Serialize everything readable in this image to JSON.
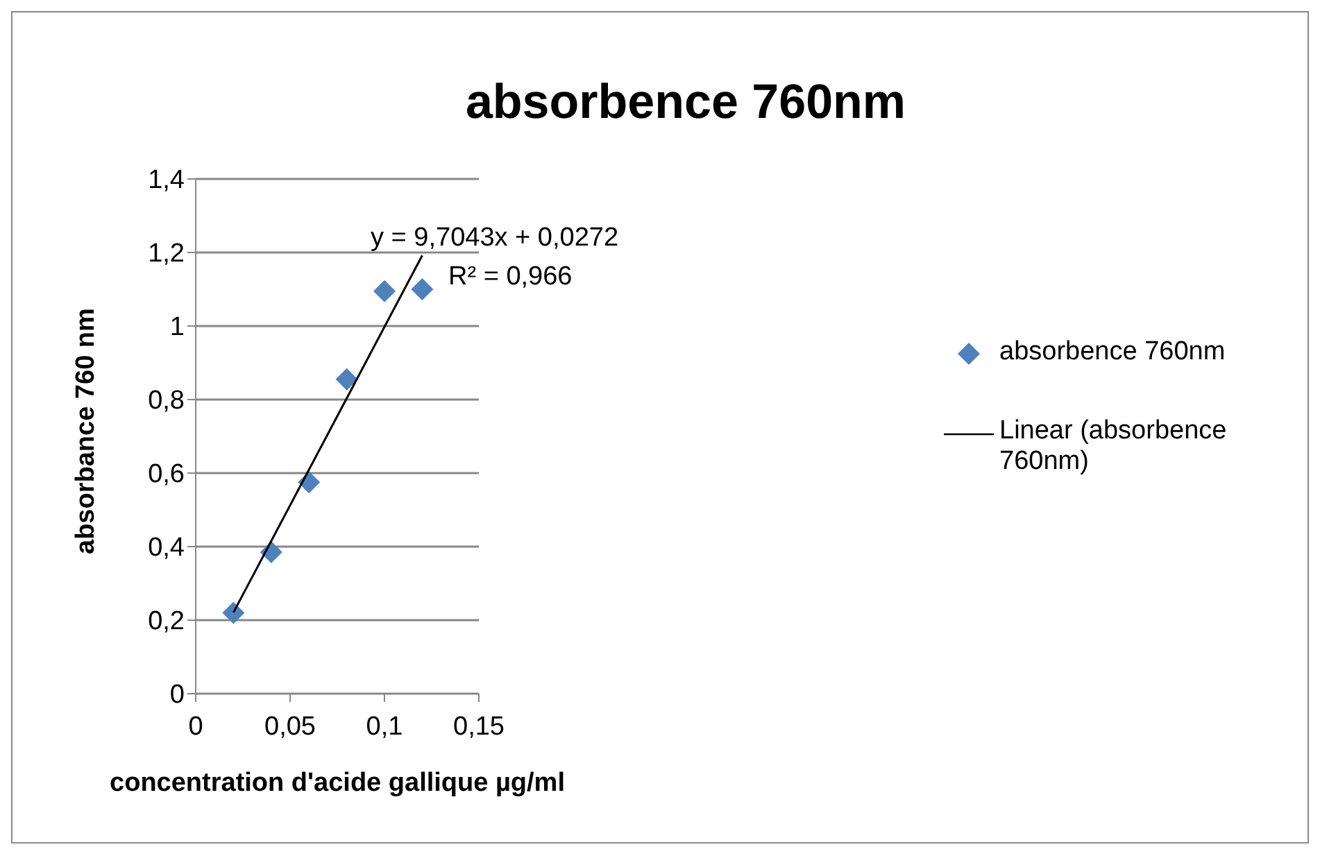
{
  "chart_data": {
    "type": "scatter",
    "title": "absorbence 760nm",
    "xlabel": "concentration d'acide gallique µg/ml",
    "ylabel": "absorbance 760 nm",
    "series": [
      {
        "name": "absorbence 760nm",
        "color": "#4f81bd",
        "marker": "diamond",
        "x": [
          0.02,
          0.04,
          0.06,
          0.08,
          0.1,
          0.12
        ],
        "values": [
          0.22,
          0.385,
          0.575,
          0.855,
          1.095,
          1.1
        ]
      },
      {
        "name": "Linear (absorbence 760nm)",
        "type": "line",
        "marker": "none",
        "color": "#000000",
        "x": [
          0.02,
          0.12
        ],
        "values": [
          0.221,
          1.192
        ]
      }
    ],
    "annotations": [
      "y = 9,7043x + 0,0272",
      "R² = 0,966"
    ],
    "xlim": [
      0,
      0.15
    ],
    "xticks": [
      0,
      {
        "value": 0.05,
        "label": "0,05"
      },
      {
        "value": 0.1,
        "label": "0,1"
      },
      {
        "value": 0.15,
        "label": "0,15"
      }
    ],
    "ylim": [
      0,
      1.4
    ],
    "yticks": [
      0,
      {
        "value": 0.2,
        "label": "0,2"
      },
      {
        "value": 0.4,
        "label": "0,4"
      },
      {
        "value": 0.6,
        "label": "0,6"
      },
      {
        "value": 0.8,
        "label": "0,8"
      },
      1,
      {
        "value": 1.2,
        "label": "1,2"
      },
      {
        "value": 1.4,
        "label": "1,4"
      }
    ],
    "grid": "y",
    "legend": "right"
  }
}
